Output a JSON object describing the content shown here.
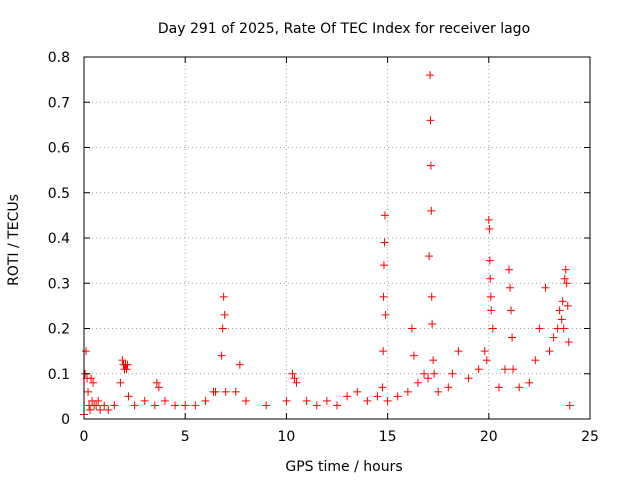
{
  "chart_data": {
    "type": "scatter",
    "title": "Day 291 of 2025, Rate Of TEC Index for receiver lago",
    "xlabel": "GPS time / hours",
    "ylabel": "ROTI / TECUs",
    "xlim": [
      0,
      25
    ],
    "ylim": [
      0,
      0.8
    ],
    "x_ticks": [
      0,
      5,
      10,
      15,
      20,
      25
    ],
    "x_tick_labels": [
      "0",
      "5",
      "10",
      "15",
      "20",
      "25"
    ],
    "y_ticks": [
      0,
      0.1,
      0.2,
      0.3,
      0.4,
      0.5,
      0.6,
      0.7,
      0.8
    ],
    "y_tick_labels": [
      "0",
      "0.1",
      "0.2",
      "0.3",
      "0.4",
      "0.5",
      "0.6",
      "0.7",
      "0.8"
    ],
    "grid": true,
    "marker": "+",
    "color": "#ff0000",
    "series": [
      {
        "x": [
          0.0,
          0.05,
          0.1,
          0.15,
          0.2,
          0.25,
          0.3,
          0.35,
          0.4,
          0.45,
          0.5,
          0.6,
          0.7,
          0.8,
          1.0,
          1.2,
          1.5,
          1.8,
          1.9,
          1.95,
          2.0,
          2.05,
          2.1,
          2.15,
          2.2,
          2.5,
          3.0,
          3.5,
          3.6,
          3.7,
          4.0,
          4.5,
          5.0,
          5.5,
          6.0,
          6.4,
          6.5,
          6.8,
          6.85,
          6.9,
          6.95,
          7.0,
          7.5,
          7.7,
          8.0,
          9.0,
          10.0,
          10.3,
          10.4,
          10.5,
          11.0,
          11.5,
          12.0,
          12.5,
          13.0,
          13.5,
          14.0,
          14.5,
          14.75,
          14.78,
          14.8,
          14.82,
          14.85,
          14.87,
          14.9,
          15.0,
          15.5,
          16.0,
          16.2,
          16.3,
          16.5,
          16.8,
          17.0,
          17.05,
          17.1,
          17.12,
          17.14,
          17.16,
          17.18,
          17.2,
          17.25,
          17.3,
          17.5,
          18.0,
          18.2,
          18.5,
          19.0,
          19.5,
          19.8,
          19.9,
          20.0,
          20.03,
          20.05,
          20.07,
          20.1,
          20.12,
          20.2,
          20.5,
          20.8,
          21.0,
          21.05,
          21.1,
          21.15,
          21.2,
          21.5,
          22.0,
          22.3,
          22.5,
          22.8,
          23.0,
          23.2,
          23.4,
          23.5,
          23.6,
          23.65,
          23.7,
          23.75,
          23.8,
          23.85,
          23.9,
          23.95,
          24.0
        ],
        "y": [
          0.01,
          0.1,
          0.15,
          0.09,
          0.06,
          0.03,
          0.02,
          0.09,
          0.04,
          0.08,
          0.03,
          0.03,
          0.04,
          0.02,
          0.03,
          0.02,
          0.03,
          0.08,
          0.13,
          0.12,
          0.11,
          0.12,
          0.11,
          0.12,
          0.05,
          0.03,
          0.04,
          0.03,
          0.08,
          0.07,
          0.04,
          0.03,
          0.03,
          0.03,
          0.04,
          0.06,
          0.06,
          0.14,
          0.2,
          0.27,
          0.23,
          0.06,
          0.06,
          0.12,
          0.04,
          0.03,
          0.04,
          0.1,
          0.09,
          0.08,
          0.04,
          0.03,
          0.04,
          0.03,
          0.05,
          0.06,
          0.04,
          0.05,
          0.07,
          0.15,
          0.27,
          0.34,
          0.39,
          0.45,
          0.23,
          0.04,
          0.05,
          0.06,
          0.2,
          0.14,
          0.08,
          0.1,
          0.09,
          0.36,
          0.76,
          0.66,
          0.56,
          0.46,
          0.27,
          0.21,
          0.13,
          0.1,
          0.06,
          0.07,
          0.1,
          0.15,
          0.09,
          0.11,
          0.15,
          0.13,
          0.44,
          0.42,
          0.35,
          0.31,
          0.27,
          0.24,
          0.2,
          0.07,
          0.11,
          0.33,
          0.29,
          0.24,
          0.18,
          0.11,
          0.07,
          0.08,
          0.13,
          0.2,
          0.29,
          0.15,
          0.18,
          0.2,
          0.24,
          0.22,
          0.26,
          0.2,
          0.31,
          0.33,
          0.3,
          0.25,
          0.17,
          0.03
        ]
      }
    ]
  }
}
